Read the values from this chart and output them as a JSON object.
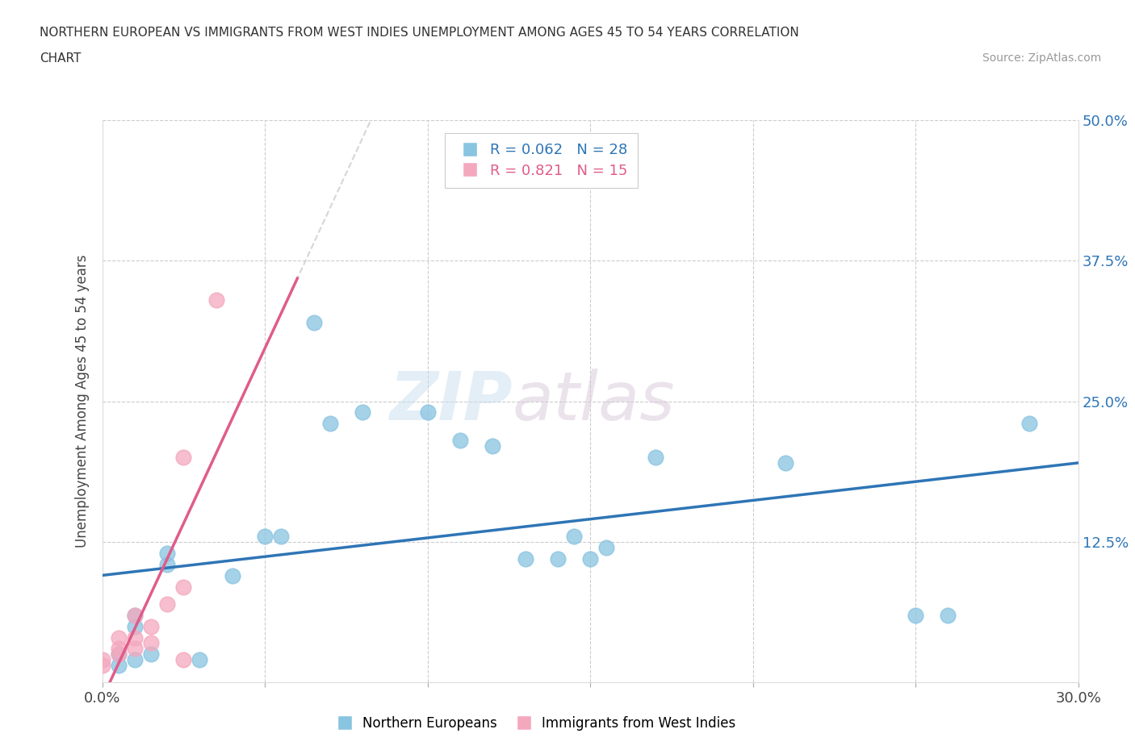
{
  "title_line1": "NORTHERN EUROPEAN VS IMMIGRANTS FROM WEST INDIES UNEMPLOYMENT AMONG AGES 45 TO 54 YEARS CORRELATION",
  "title_line2": "CHART",
  "source_text": "Source: ZipAtlas.com",
  "ylabel": "Unemployment Among Ages 45 to 54 years",
  "xlim": [
    0.0,
    0.3
  ],
  "ylim": [
    0.0,
    0.5
  ],
  "xticks": [
    0.0,
    0.05,
    0.1,
    0.15,
    0.2,
    0.25,
    0.3
  ],
  "xticklabels": [
    "0.0%",
    "",
    "",
    "",
    "",
    "",
    "30.0%"
  ],
  "yticks": [
    0.0,
    0.125,
    0.25,
    0.375,
    0.5
  ],
  "yticklabels": [
    "",
    "12.5%",
    "25.0%",
    "37.5%",
    "50.0%"
  ],
  "blue_color": "#89c4e1",
  "pink_color": "#f4a8be",
  "blue_line_color": "#2e75b6",
  "pink_line_color": "#e05c8a",
  "R_blue": 0.062,
  "N_blue": 28,
  "R_pink": 0.821,
  "N_pink": 15,
  "watermark_zip": "ZIP",
  "watermark_atlas": "atlas",
  "northern_europeans_x": [
    0.005,
    0.005,
    0.01,
    0.01,
    0.01,
    0.015,
    0.02,
    0.02,
    0.03,
    0.04,
    0.05,
    0.055,
    0.065,
    0.07,
    0.08,
    0.1,
    0.11,
    0.12,
    0.13,
    0.14,
    0.145,
    0.15,
    0.155,
    0.17,
    0.21,
    0.25,
    0.26,
    0.285
  ],
  "northern_europeans_y": [
    0.015,
    0.025,
    0.02,
    0.05,
    0.06,
    0.025,
    0.105,
    0.115,
    0.02,
    0.095,
    0.13,
    0.13,
    0.32,
    0.23,
    0.24,
    0.24,
    0.215,
    0.21,
    0.11,
    0.11,
    0.13,
    0.11,
    0.12,
    0.2,
    0.195,
    0.06,
    0.06,
    0.23
  ],
  "west_indies_x": [
    0.0,
    0.0,
    0.005,
    0.005,
    0.005,
    0.01,
    0.01,
    0.01,
    0.015,
    0.015,
    0.02,
    0.025,
    0.025,
    0.025,
    0.035
  ],
  "west_indies_y": [
    0.015,
    0.02,
    0.025,
    0.03,
    0.04,
    0.03,
    0.04,
    0.06,
    0.035,
    0.05,
    0.07,
    0.2,
    0.085,
    0.02,
    0.34
  ]
}
